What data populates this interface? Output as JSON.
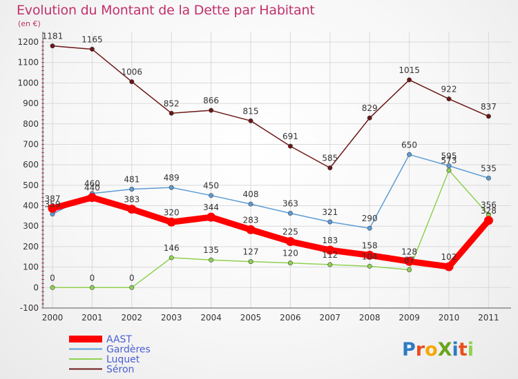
{
  "chart_data": {
    "type": "line",
    "title": "Evolution du Montant de la Dette par Habitant",
    "unit_label": "(en €)",
    "x": [
      "2000",
      "2001",
      "2002",
      "2003",
      "2004",
      "2005",
      "2006",
      "2007",
      "2008",
      "2009",
      "2010",
      "2011"
    ],
    "ylim": [
      -100,
      1200
    ],
    "yticks": [
      -100,
      0,
      100,
      200,
      300,
      400,
      500,
      600,
      700,
      800,
      900,
      1000,
      1100,
      1200
    ],
    "grid": true,
    "legend_position": "bottom-left",
    "series": [
      {
        "name": "AAST",
        "color": "#ff0000",
        "values": [
          387,
          440,
          383,
          320,
          344,
          283,
          225,
          183,
          158,
          128,
          102,
          328
        ]
      },
      {
        "name": "Gardères",
        "color": "#5b9bd5",
        "values": [
          359,
          460,
          481,
          489,
          450,
          408,
          363,
          321,
          290,
          650,
          595,
          535
        ]
      },
      {
        "name": "Luquet",
        "color": "#8ed14f",
        "values": [
          0,
          0,
          0,
          146,
          135,
          127,
          120,
          112,
          104,
          87,
          573,
          356
        ]
      },
      {
        "name": "Séron",
        "color": "#6b1515",
        "values": [
          1181,
          1165,
          1006,
          852,
          866,
          815,
          691,
          585,
          829,
          1015,
          922,
          837
        ]
      }
    ]
  },
  "brand": "Proxiti"
}
